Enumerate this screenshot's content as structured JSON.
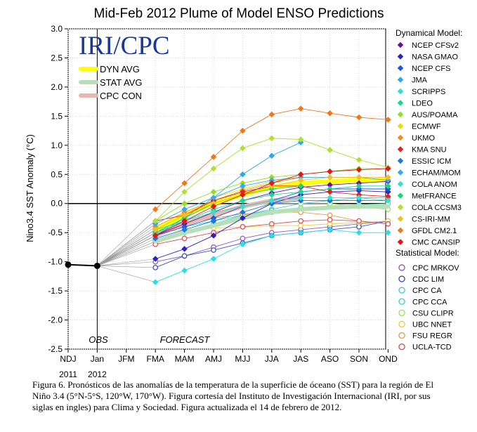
{
  "chart_data": {
    "type": "line",
    "title": "Mid-Feb 2012 Plume of Model ENSO Predictions",
    "ylabel": "Nino3.4 SST Anomaly (°C)",
    "ylim": [
      -2.5,
      3.0
    ],
    "yticks": [
      3.0,
      2.5,
      2.0,
      1.5,
      1.0,
      0.5,
      0.0,
      -0.5,
      -1.0,
      -1.5,
      -2.0,
      -2.5
    ],
    "ytick_labels": [
      "3.0",
      "2.5",
      "2.0",
      "1.5",
      "1.0",
      "0.5",
      "0.0",
      "-0.5",
      "-1.0",
      "-1.5",
      "-2.0",
      "-2.5"
    ],
    "categories": [
      "NDJ",
      "Jan",
      "JFM",
      "FMA",
      "MAM",
      "AMJ",
      "MJJ",
      "JJA",
      "JAS",
      "ASO",
      "SON",
      "OND"
    ],
    "year_labels": [
      "2011",
      "2012"
    ],
    "obs_label": "OBS",
    "forecast_label": "FORECAST",
    "grid": true,
    "legend_position": "right",
    "logo": "IRI/CPC",
    "observed": [
      -1.05,
      -1.07
    ],
    "inset_legend": [
      {
        "name": "DYN AVG",
        "color": "#ffff00"
      },
      {
        "name": "STAT AVG",
        "color": "#b8e0b8"
      },
      {
        "name": "CPC CON",
        "color": "#e8b8b0"
      }
    ],
    "dynamical_title": "Dynamical Model:",
    "statistical_title": "Statistical Model:",
    "dynamical": [
      {
        "name": "NCEP CFSv2",
        "color": "#6a0fa0",
        "values": [
          -0.55,
          -0.35,
          -0.15,
          0.05,
          0.18,
          0.28,
          0.32,
          0.35,
          0.38
        ]
      },
      {
        "name": "NASA GMAO",
        "color": "#3020c0",
        "values": [
          -0.95,
          -0.78,
          -0.55,
          -0.25,
          0.0,
          0.15,
          0.2,
          0.22,
          0.2
        ]
      },
      {
        "name": "NCEP CFS",
        "color": "#1a58e8",
        "values": [
          -0.55,
          -0.4,
          -0.25,
          -0.05,
          0.05,
          0.2,
          0.25,
          0.25,
          0.25
        ]
      },
      {
        "name": "JMA",
        "color": "#28a8f0",
        "values": [
          -0.55,
          -0.25,
          0.1,
          0.5,
          0.82,
          1.05,
          null,
          null,
          null
        ]
      },
      {
        "name": "SCRIPPS",
        "color": "#28e0e0",
        "values": [
          -1.35,
          -1.15,
          -0.95,
          -0.7,
          -0.55,
          -0.5,
          -0.45,
          -0.5,
          -0.5
        ]
      },
      {
        "name": "LDEO",
        "color": "#18d890",
        "values": [
          -0.5,
          -0.3,
          -0.1,
          0.05,
          0.15,
          0.2,
          0.25,
          0.3,
          0.3
        ]
      },
      {
        "name": "AUS/POAMA",
        "color": "#90e020",
        "values": [
          -0.3,
          0.0,
          0.2,
          0.35,
          0.45,
          0.5,
          0.55,
          0.6,
          0.6
        ]
      },
      {
        "name": "ECMWF",
        "color": "#e8e000",
        "values": [
          -0.35,
          -0.1,
          0.1,
          0.25,
          0.38,
          0.45,
          null,
          null,
          null
        ]
      },
      {
        "name": "UKMO",
        "color": "#f09020",
        "values": [
          -0.4,
          -0.15,
          0.05,
          0.22,
          0.35,
          0.45,
          null,
          null,
          null
        ]
      },
      {
        "name": "KMA SNU",
        "color": "#e82020",
        "values": [
          -0.3,
          -0.2,
          0.05,
          0.2,
          0.3,
          0.3,
          0.2,
          0.15,
          0.12
        ]
      },
      {
        "name": "ESSIC ICM",
        "color": "#1a78e0",
        "values": [
          -0.6,
          -0.45,
          -0.3,
          -0.15,
          0.0,
          0.05,
          0.05,
          0.05,
          0.05
        ]
      },
      {
        "name": "ECHAM/MOM",
        "color": "#38a8f0",
        "values": [
          -0.35,
          -0.1,
          0.1,
          0.3,
          0.4,
          0.45,
          0.45,
          0.45,
          0.4
        ]
      },
      {
        "name": "COLA ANOM",
        "color": "#38e0c8",
        "values": [
          -0.45,
          -0.3,
          -0.15,
          -0.05,
          0.05,
          0.1,
          0.1,
          0.1,
          0.05
        ]
      },
      {
        "name": "MetFRANCE",
        "color": "#18d870",
        "values": [
          -0.5,
          -0.25,
          0.0,
          0.15,
          0.25,
          0.3,
          null,
          null,
          null
        ]
      },
      {
        "name": "COLA CCSM3",
        "color": "#b0e030",
        "values": [
          -0.3,
          0.2,
          0.6,
          0.95,
          1.12,
          1.1,
          0.92,
          0.75,
          0.62
        ]
      },
      {
        "name": "CS-IRI-MM",
        "color": "#f0c020",
        "values": [
          -0.45,
          -0.2,
          0.0,
          0.15,
          0.3,
          0.4,
          0.45,
          0.45,
          0.45
        ]
      },
      {
        "name": "GFDL CM2.1",
        "color": "#f07818",
        "values": [
          -0.1,
          0.35,
          0.8,
          1.25,
          1.53,
          1.63,
          1.55,
          1.48,
          1.44
        ]
      },
      {
        "name": "CMC CANSIP",
        "color": "#e01818",
        "values": [
          -0.55,
          -0.3,
          -0.05,
          0.15,
          0.35,
          0.5,
          0.55,
          0.58,
          0.6
        ]
      }
    ],
    "statistical": [
      {
        "name": "CPC MRKOV",
        "color": "#9060c0",
        "values": [
          -1.0,
          -0.9,
          -0.75,
          -0.6,
          -0.5,
          -0.45,
          -0.4,
          -0.35,
          -0.3
        ]
      },
      {
        "name": "CDC LIM",
        "color": "#4050c8",
        "values": [
          -1.1,
          -0.9,
          -0.8,
          -0.68,
          -0.55,
          -0.5,
          -0.45,
          -0.4,
          -0.3
        ]
      },
      {
        "name": "CPC CA",
        "color": "#48c8e8",
        "values": [
          -0.65,
          -0.5,
          -0.35,
          -0.2,
          -0.1,
          0.0,
          0.05,
          0.1,
          0.1
        ]
      },
      {
        "name": "CPC CCA",
        "color": "#40d8b0",
        "values": [
          -0.55,
          -0.4,
          -0.3,
          -0.2,
          -0.12,
          -0.08,
          -0.05,
          -0.02,
          0.0
        ]
      },
      {
        "name": "CSU CLIPR",
        "color": "#a0e060",
        "values": [
          -0.45,
          -0.3,
          -0.15,
          -0.05,
          0.0,
          0.0,
          0.0,
          -0.05,
          -0.1
        ]
      },
      {
        "name": "UBC NNET",
        "color": "#e8d040",
        "values": [
          -0.5,
          -0.45,
          -0.42,
          -0.4,
          -0.38,
          -0.38,
          -0.35,
          -0.33,
          -0.3
        ]
      },
      {
        "name": "FSU REGR",
        "color": "#f09850",
        "values": [
          -0.5,
          -0.35,
          -0.25,
          -0.18,
          -0.15,
          -0.15,
          -0.2,
          -0.3,
          -0.35
        ]
      },
      {
        "name": "UCLA-TCD",
        "color": "#e05050",
        "values": [
          -0.7,
          -0.6,
          -0.5,
          -0.4,
          -0.35,
          -0.3,
          -0.28,
          -0.3,
          -0.35
        ]
      }
    ],
    "averages": [
      {
        "name": "DYN AVG",
        "color": "#ffff00",
        "values": [
          -0.45,
          -0.2,
          0.0,
          0.15,
          0.28,
          0.35,
          0.38,
          0.4,
          0.4
        ]
      },
      {
        "name": "STAT AVG",
        "color": "#b8e0b8",
        "values": [
          -0.65,
          -0.5,
          -0.38,
          -0.25,
          -0.15,
          -0.1,
          -0.07,
          -0.05,
          -0.05
        ]
      },
      {
        "name": "CPC CON",
        "color": "#e8b8b0",
        "values": [
          -0.55,
          -0.35,
          -0.2,
          -0.05,
          0.05,
          0.1,
          null,
          null,
          null
        ]
      }
    ]
  },
  "caption": "Figura 6. Pronósticos de las anomalías de la temperatura de la superficie de óceano (SST) para la región de El Niño 3.4 (5°N-5°S, 120°W, 170°W). Figura cortesía del Instituto de Investigación Internacional (IRI, por sus siglas en ingles) para Clima y Sociedad. Figura actualizada el  14 de febrero de 2012."
}
